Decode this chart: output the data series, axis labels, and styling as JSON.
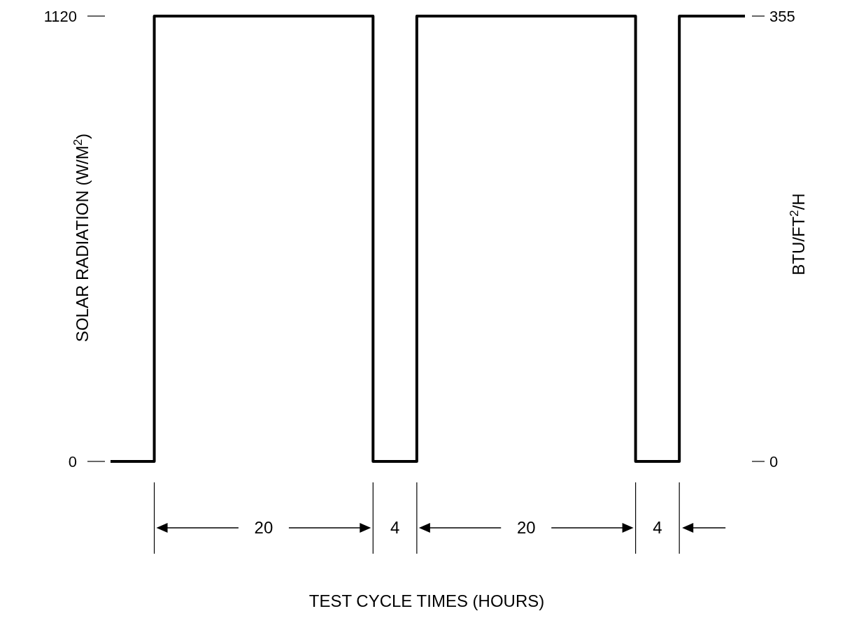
{
  "chart_data": {
    "type": "step",
    "ylabel": "SOLAR RADIATION (W/M$^{2}$)",
    "y2label": "BTU/FT$^{2}$/H",
    "categories": [
      null,
      null,
      null,
      null,
      null,
      null,
      null,
      null,
      null,
      null,
      null,
      null,
      null,
      null,
      null,
      null,
      null,
      null,
      null,
      null,
      null,
      null,
      null,
      null,
      null,
      null,
      null,
      null,
      null,
      null,
      null,
      null,
      null,
      null,
      null,
      null,
      null,
      null,
      null,
      null,
      null,
      null,
      null,
      null,
      null,
      null,
      null,
      null,
      null,
      null,
      null,
      null,
      null,
      null,
      null,
      null,
      null,
      null,
      null
    ],
    "values": [
      0,
      0,
      0,
      0,
      1120,
      1120,
      1120,
      1120,
      1120,
      1120,
      1120,
      1120,
      1120,
      1120,
      1120,
      1120,
      1120,
      1120,
      1120,
      1120,
      1120,
      1120,
      1120,
      1120,
      0,
      0,
      0,
      0,
      1120,
      1120,
      1120,
      1120,
      1120,
      1120,
      1120,
      1120,
      1120,
      1120,
      1120,
      1120,
      1120,
      1120,
      1120,
      1120,
      1120,
      1120,
      1120,
      1120,
      0,
      0,
      0,
      0,
      1120,
      1120,
      1120,
      1120,
      1120,
      1120,
      1120
    ],
    "color": "#000000",
    "ylim": [
      0,
      1120
    ],
    "yticks": [
      0,
      1120
    ],
    "y2lim": [
      0,
      355
    ],
    "y2ticks": [
      0,
      355
    ],
    "annotations": [
      "20",
      "4",
      "20",
      "4",
      "TEST CYCLE TIMES (HOURS)"
    ]
  }
}
